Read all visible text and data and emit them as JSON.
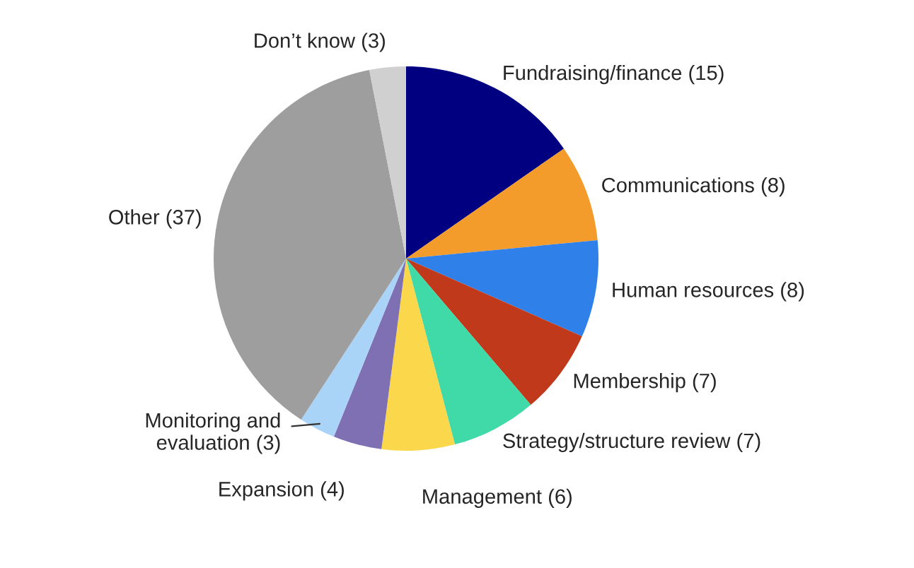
{
  "chart_data": {
    "type": "pie",
    "categories": [
      "Fundraising/finance (15)",
      "Communications (8)",
      "Human resources (8)",
      "Membership (7)",
      "Strategy/structure review (7)",
      "Management (6)",
      "Expansion (4)",
      "Monitoring and\nevaluation (3)",
      "Other (37)",
      "Don’t know (3)"
    ],
    "values": [
      15,
      8,
      8,
      7,
      7,
      6,
      4,
      3,
      37,
      3
    ],
    "colors": [
      "#000080",
      "#f39c2b",
      "#2f80e8",
      "#c0391b",
      "#40d9a8",
      "#fbd84b",
      "#7f6fb3",
      "#a9d3f7",
      "#9e9e9e",
      "#d0d0d0"
    ]
  }
}
